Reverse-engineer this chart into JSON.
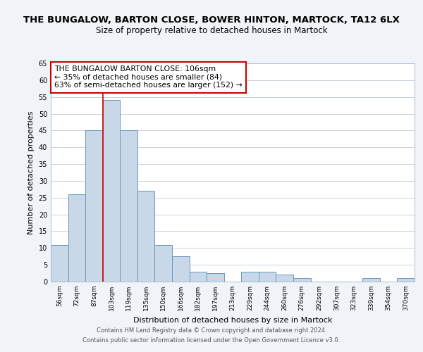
{
  "title": "THE BUNGALOW, BARTON CLOSE, BOWER HINTON, MARTOCK, TA12 6LX",
  "subtitle": "Size of property relative to detached houses in Martock",
  "xlabel": "Distribution of detached houses by size in Martock",
  "ylabel": "Number of detached properties",
  "categories": [
    "56sqm",
    "72sqm",
    "87sqm",
    "103sqm",
    "119sqm",
    "135sqm",
    "150sqm",
    "166sqm",
    "182sqm",
    "197sqm",
    "213sqm",
    "229sqm",
    "244sqm",
    "260sqm",
    "276sqm",
    "292sqm",
    "307sqm",
    "323sqm",
    "339sqm",
    "354sqm",
    "370sqm"
  ],
  "values": [
    11,
    26,
    45,
    54,
    45,
    27,
    11,
    7.5,
    3,
    2.5,
    0,
    3,
    3,
    2,
    1,
    0,
    0,
    0,
    1,
    0,
    1
  ],
  "bar_color": "#c8d8e8",
  "bar_edge_color": "#6699bb",
  "vline_x_index": 3,
  "vline_color": "#cc0000",
  "ylim": [
    0,
    65
  ],
  "yticks": [
    0,
    5,
    10,
    15,
    20,
    25,
    30,
    35,
    40,
    45,
    50,
    55,
    60,
    65
  ],
  "annotation_title": "THE BUNGALOW BARTON CLOSE: 106sqm",
  "annotation_line1": "← 35% of detached houses are smaller (84)",
  "annotation_line2": "63% of semi-detached houses are larger (152) →",
  "annotation_box_color": "#ffffff",
  "annotation_box_edge": "#cc0000",
  "footer1": "Contains HM Land Registry data © Crown copyright and database right 2024.",
  "footer2": "Contains public sector information licensed under the Open Government Licence v3.0.",
  "bg_color": "#f0f4f8",
  "plot_bg_color": "#ffffff",
  "grid_color": "#c0ccd8"
}
